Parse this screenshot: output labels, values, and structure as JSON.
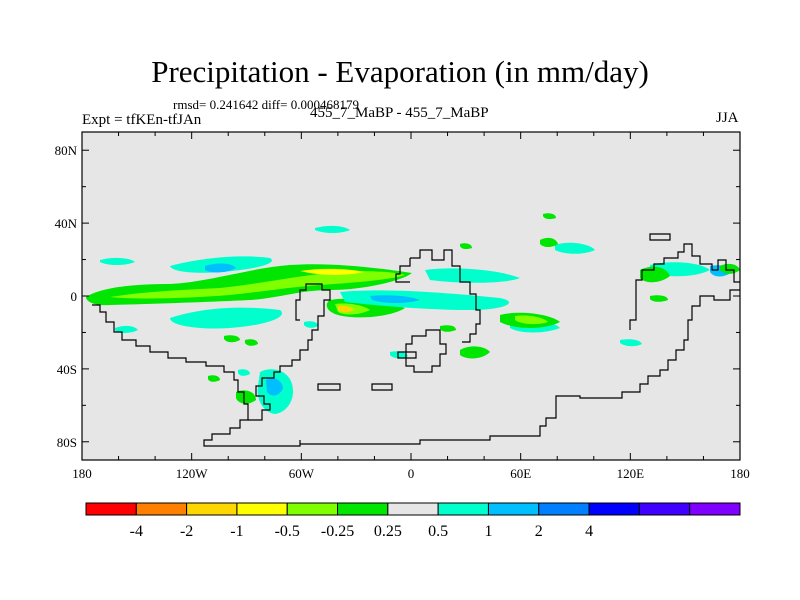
{
  "title": "Precipitation - Evaporation (in mm/day)",
  "stats": "rmsd= 0.241642 diff= 0.000468179",
  "expt": "Expt = tfKEn-tfJAn",
  "subtitle": "455_7_MaBP - 455_7_MaBP",
  "season": "JJA",
  "chart_data": {
    "type": "heatmap",
    "title": "Precipitation - Evaporation (in mm/day)",
    "xlabel": "",
    "ylabel": "",
    "xlim": [
      -180,
      180
    ],
    "ylim": [
      -90,
      90
    ],
    "x_ticks": [
      {
        "value": -180,
        "label": "180"
      },
      {
        "value": -120,
        "label": "120W"
      },
      {
        "value": -60,
        "label": "60W"
      },
      {
        "value": 0,
        "label": "0"
      },
      {
        "value": 60,
        "label": "60E"
      },
      {
        "value": 120,
        "label": "120E"
      },
      {
        "value": 180,
        "label": "180"
      }
    ],
    "y_ticks": [
      {
        "value": 80,
        "label": "80N"
      },
      {
        "value": 40,
        "label": "40N"
      },
      {
        "value": 0,
        "label": "0"
      },
      {
        "value": -40,
        "label": "40S"
      },
      {
        "value": -80,
        "label": "80S"
      }
    ],
    "missing_color": "#e6e6e6",
    "colorbar": {
      "colors": [
        "#ff0000",
        "#ff8000",
        "#ffd700",
        "#ffff00",
        "#80ff00",
        "#00e600",
        "#e6e6e6",
        "#00ffcc",
        "#00bfff",
        "#0080ff",
        "#0000ff",
        "#4000ff",
        "#8000ff"
      ],
      "labels": [
        "-4",
        "-2",
        "-1",
        "-0.5",
        "-0.25",
        "0.25",
        "0.5",
        "1",
        "2",
        "4"
      ]
    },
    "anomaly_regions": [
      {
        "lon": [
          -178,
          -150
        ],
        "lat": [
          1,
          4
        ],
        "level": -0.25
      },
      {
        "lon": [
          -150,
          -100
        ],
        "lat": [
          -1,
          5
        ],
        "level": -0.25
      },
      {
        "lon": [
          -100,
          -70
        ],
        "lat": [
          5,
          9
        ],
        "level": -0.25
      },
      {
        "lon": [
          -85,
          -55
        ],
        "lat": [
          8,
          12
        ],
        "level": -0.5
      },
      {
        "lon": [
          -55,
          -10
        ],
        "lat": [
          7,
          13
        ],
        "level": -0.25
      },
      {
        "lon": [
          -45,
          -25
        ],
        "lat": [
          10,
          12
        ],
        "level": -2
      },
      {
        "lon": [
          -30,
          -15
        ],
        "lat": [
          -12,
          -4
        ],
        "level": -0.25
      },
      {
        "lon": [
          -38,
          -28
        ],
        "lat": [
          -10,
          -6
        ],
        "level": -1
      },
      {
        "lon": [
          -120,
          -90
        ],
        "lat": [
          12,
          17
        ],
        "level": 0.25
      },
      {
        "lon": [
          -110,
          -95
        ],
        "lat": [
          13,
          15
        ],
        "level": 0.5
      },
      {
        "lon": [
          -60,
          -35
        ],
        "lat": [
          17,
          21
        ],
        "level": 0.25
      },
      {
        "lon": [
          -120,
          -85
        ],
        "lat": [
          -12,
          -6
        ],
        "level": 0.25
      },
      {
        "lon": [
          -20,
          55
        ],
        "lat": [
          -7,
          -1
        ],
        "level": 0.25
      },
      {
        "lon": [
          10,
          30
        ],
        "lat": [
          -6,
          -3
        ],
        "level": 0.5
      },
      {
        "lon": [
          10,
          40
        ],
        "lat": [
          9,
          13
        ],
        "level": 0.25
      },
      {
        "lon": [
          125,
          145
        ],
        "lat": [
          11,
          15
        ],
        "level": -0.25
      },
      {
        "lon": [
          150,
          178
        ],
        "lat": [
          12,
          16
        ],
        "level": 0.25
      },
      {
        "lon": [
          -100,
          -80
        ],
        "lat": [
          -52,
          -40
        ],
        "level": -0.25
      },
      {
        "lon": [
          -85,
          -70
        ],
        "lat": [
          -48,
          -44
        ],
        "level": 0.25
      },
      {
        "lon": [
          50,
          70
        ],
        "lat": [
          -16,
          -11
        ],
        "level": -0.25
      },
      {
        "lon": [
          70,
          90
        ],
        "lat": [
          -26,
          -20
        ],
        "level": 0.25
      }
    ]
  }
}
